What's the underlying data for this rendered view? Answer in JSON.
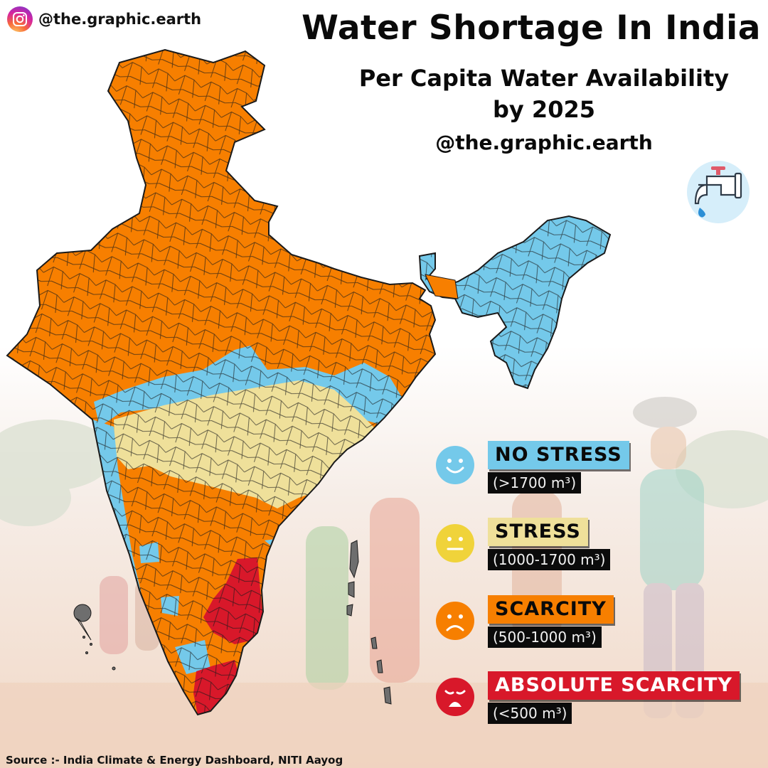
{
  "handle": "@the.graphic.earth",
  "title": "Water Shortage In India",
  "subtitle_line1": "Per Capita Water Availability",
  "subtitle_line2": "by 2025",
  "subtitle_handle": "@the.graphic.earth",
  "colors": {
    "no_stress": "#74c9ea",
    "stress": "#efe09a",
    "scarcity": "#f77f00",
    "absolute_scarcity": "#d8182a",
    "border": "#1a1a1a"
  },
  "legend": [
    {
      "label": "NO STRESS",
      "range": "(>1700 m³)",
      "face": "smile",
      "color": "#74c9ea"
    },
    {
      "label": "STRESS",
      "range": "(1000-1700 m³)",
      "face": "neutral",
      "color": "#efe09a"
    },
    {
      "label": "SCARCITY",
      "range": "(500-1000 m³)",
      "face": "frown",
      "color": "#f77f00"
    },
    {
      "label": "ABSOLUTE SCARCITY",
      "range": "(<500 m³)",
      "face": "distressed",
      "color": "#d8182a"
    }
  ],
  "icons": {
    "top": "instagram-icon",
    "tap": "water-tap-icon"
  },
  "source": "Source :- India Climate & Energy Dashboard, NITI Aayog"
}
